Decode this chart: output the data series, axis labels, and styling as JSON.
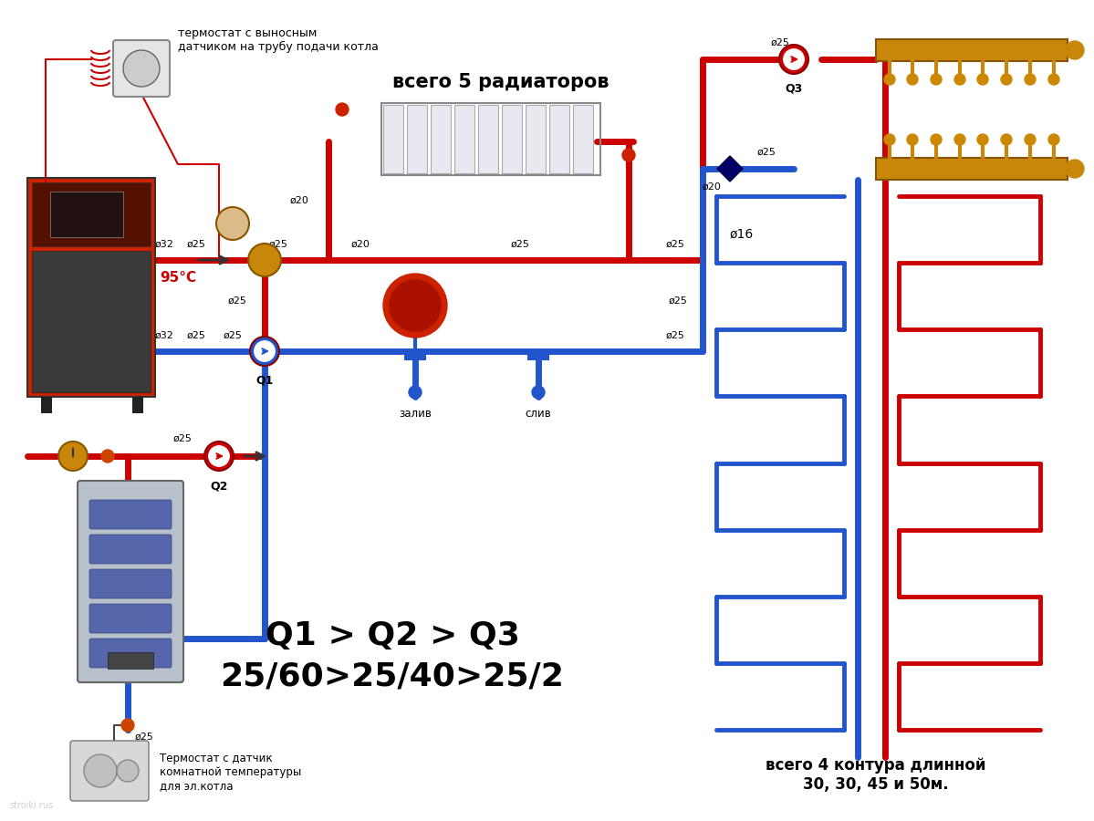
{
  "background_color": "#ffffff",
  "pipe_red": "#cc0000",
  "pipe_blue": "#2255cc",
  "text_color": "#000000",
  "lw_main": 5,
  "lw_floor": 3.5,
  "annotations": {
    "thermostat_top": "термостат с выносным\nдатчиком на трубу подачи котла",
    "radiators": "всего 5 радиаторов",
    "temp_label": "95°С",
    "q1": "Q1",
    "q2": "Q2",
    "q3": "Q3",
    "contours": "всего 4 контура длинной\n30, 30, 45 и 50м.",
    "d16": "ø16",
    "zalivka": "залив",
    "sliv": "слив",
    "thermostat_bottom": "Термостат с датчик\nкомнатной температуры\nдля эл.котла",
    "pump_label": "Q1 > Q2 > Q3\n25/60>25/40>25/2"
  }
}
